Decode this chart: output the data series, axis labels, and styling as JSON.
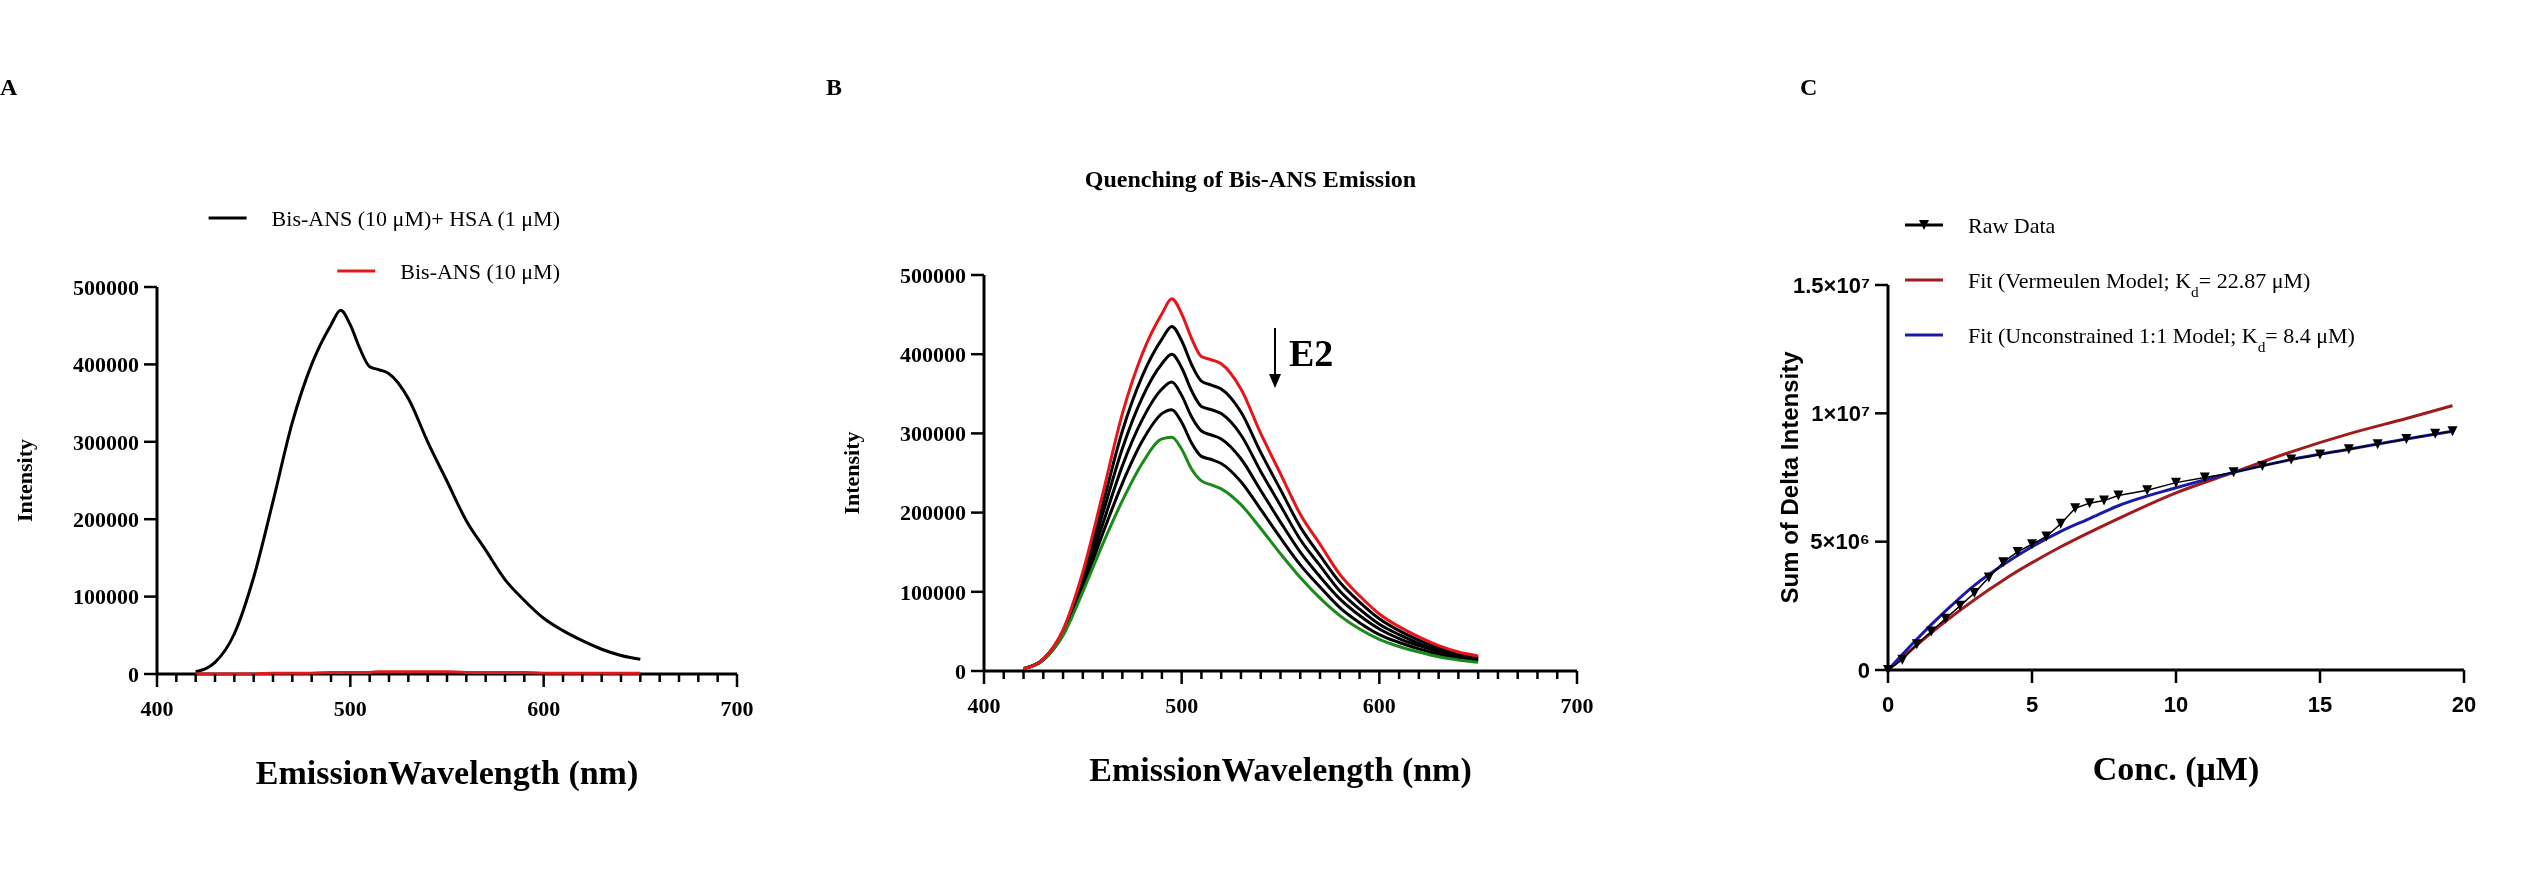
{
  "chart_data": [
    {
      "type": "line",
      "annotations": [
        "A"
      ],
      "xlabel": "EmissionWavelength (nm)",
      "ylabel": "Intensity",
      "legend": "top",
      "x": [
        420,
        430,
        440,
        450,
        460,
        470,
        480,
        490,
        495,
        500,
        505,
        510,
        515,
        520,
        530,
        540,
        550,
        560,
        570,
        580,
        590,
        600,
        610,
        620,
        630,
        640,
        650
      ],
      "series": [
        {
          "name": "Bis-ANS (10 μM)+ HSA (1 μM)",
          "color": "#000000",
          "values": [
            3000,
            15000,
            52000,
            125000,
            223000,
            325000,
            400000,
            451000,
            470000,
            451000,
            420000,
            397000,
            393000,
            388000,
            356000,
            300000,
            249000,
            198000,
            160000,
            122000,
            95000,
            72000,
            56000,
            43000,
            32000,
            24000,
            19000
          ]
        },
        {
          "name": "Bis-ANS (10 μM)",
          "color": "#e31a1c",
          "values": [
            0,
            0,
            0,
            0,
            1000,
            1000,
            1000,
            2000,
            2000,
            2000,
            2000,
            2000,
            3000,
            3000,
            3000,
            3000,
            3000,
            2000,
            2000,
            2000,
            2000,
            1000,
            1000,
            1000,
            1000,
            1000,
            1000
          ]
        }
      ],
      "xlim": [
        400,
        700
      ],
      "xticks": [
        400,
        {
          "value": 410,
          "label": null
        },
        {
          "value": 420,
          "label": null
        },
        {
          "value": 430,
          "label": null
        },
        {
          "value": 440,
          "label": null
        },
        {
          "value": 450,
          "label": null
        },
        {
          "value": 460,
          "label": null
        },
        {
          "value": 470,
          "label": null
        },
        {
          "value": 480,
          "label": null
        },
        {
          "value": 490,
          "label": null
        },
        500,
        {
          "value": 510,
          "label": null
        },
        {
          "value": 520,
          "label": null
        },
        {
          "value": 530,
          "label": null
        },
        {
          "value": 540,
          "label": null
        },
        {
          "value": 550,
          "label": null
        },
        {
          "value": 560,
          "label": null
        },
        {
          "value": 570,
          "label": null
        },
        {
          "value": 580,
          "label": null
        },
        {
          "value": 590,
          "label": null
        },
        600,
        {
          "value": 610,
          "label": null
        },
        {
          "value": 620,
          "label": null
        },
        {
          "value": 630,
          "label": null
        },
        {
          "value": 640,
          "label": null
        },
        {
          "value": 650,
          "label": null
        },
        {
          "value": 660,
          "label": null
        },
        {
          "value": 670,
          "label": null
        },
        {
          "value": 680,
          "label": null
        },
        {
          "value": 690,
          "label": null
        },
        700
      ],
      "ylim": [
        0,
        500000
      ],
      "yticks": [
        0,
        100000,
        200000,
        300000,
        400000,
        500000
      ],
      "grid": false
    },
    {
      "type": "line",
      "title": "Quenching of Bis-ANS Emission",
      "annotations": [
        "B",
        "E2"
      ],
      "xlabel": "EmissionWavelength (nm)",
      "ylabel": "Intensity",
      "x": [
        420,
        430,
        440,
        450,
        460,
        470,
        480,
        490,
        495,
        500,
        505,
        510,
        515,
        520,
        530,
        540,
        550,
        560,
        570,
        580,
        590,
        600,
        610,
        620,
        630,
        640,
        650
      ],
      "series": [
        {
          "color": "#000000",
          "values": [
            3000,
            15000,
            51000,
            120000,
            210000,
            303000,
            372000,
            419000,
            435000,
            417000,
            387000,
            366000,
            361000,
            356000,
            327000,
            276000,
            229000,
            182000,
            146000,
            112000,
            87000,
            66000,
            51000,
            39000,
            29000,
            22000,
            17000
          ]
        },
        {
          "color": "#000000",
          "values": [
            3000,
            15000,
            49000,
            115000,
            198000,
            281000,
            345000,
            388000,
            400000,
            383000,
            354000,
            334000,
            330000,
            325000,
            298000,
            252000,
            209000,
            166000,
            133000,
            101000,
            78000,
            59000,
            46000,
            35000,
            26000,
            20000,
            16000
          ]
        },
        {
          "color": "#000000",
          "values": [
            3000,
            14000,
            48000,
            110000,
            185000,
            259000,
            317000,
            356000,
            365000,
            348000,
            321000,
            303000,
            298000,
            293000,
            268000,
            228000,
            188000,
            150000,
            119000,
            91000,
            70000,
            53000,
            41000,
            32000,
            24000,
            18000,
            14000
          ]
        },
        {
          "color": "#000000",
          "values": [
            3000,
            14000,
            46000,
            105000,
            173000,
            237000,
            290000,
            325000,
            330000,
            314000,
            288000,
            271000,
            267000,
            262000,
            239000,
            204000,
            168000,
            134000,
            106000,
            80000,
            61000,
            46000,
            36000,
            28000,
            21000,
            16000,
            13000
          ]
        },
        {
          "color": "#1a8a1a",
          "values": [
            3000,
            14000,
            45000,
            100000,
            160000,
            215000,
            262000,
            293000,
            295000,
            280000,
            255000,
            240000,
            235000,
            230000,
            210000,
            180000,
            148000,
            118000,
            92000,
            70000,
            53000,
            40000,
            31000,
            24000,
            18000,
            14000,
            11000
          ]
        },
        {
          "color": "#e8141c",
          "values": [
            3000,
            15000,
            52000,
            125000,
            223000,
            325000,
            400000,
            451000,
            470000,
            451000,
            420000,
            397000,
            393000,
            388000,
            356000,
            300000,
            249000,
            198000,
            160000,
            122000,
            95000,
            72000,
            56000,
            43000,
            32000,
            24000,
            19000
          ]
        }
      ],
      "xlim": [
        400,
        700
      ],
      "xticks": [
        400,
        {
          "value": 410,
          "label": null
        },
        {
          "value": 420,
          "label": null
        },
        {
          "value": 430,
          "label": null
        },
        {
          "value": 440,
          "label": null
        },
        {
          "value": 450,
          "label": null
        },
        {
          "value": 460,
          "label": null
        },
        {
          "value": 470,
          "label": null
        },
        {
          "value": 480,
          "label": null
        },
        {
          "value": 490,
          "label": null
        },
        500,
        {
          "value": 510,
          "label": null
        },
        {
          "value": 520,
          "label": null
        },
        {
          "value": 530,
          "label": null
        },
        {
          "value": 540,
          "label": null
        },
        {
          "value": 550,
          "label": null
        },
        {
          "value": 560,
          "label": null
        },
        {
          "value": 570,
          "label": null
        },
        {
          "value": 580,
          "label": null
        },
        {
          "value": 590,
          "label": null
        },
        600,
        {
          "value": 610,
          "label": null
        },
        {
          "value": 620,
          "label": null
        },
        {
          "value": 630,
          "label": null
        },
        {
          "value": 640,
          "label": null
        },
        {
          "value": 650,
          "label": null
        },
        {
          "value": 660,
          "label": null
        },
        {
          "value": 670,
          "label": null
        },
        {
          "value": 680,
          "label": null
        },
        {
          "value": 690,
          "label": null
        },
        700
      ],
      "ylim": [
        0,
        500000
      ],
      "yticks": [
        0,
        100000,
        200000,
        300000,
        400000,
        500000
      ],
      "grid": false
    },
    {
      "type": "line",
      "annotations": [
        "C"
      ],
      "xlabel": "Conc. (μM)",
      "ylabel": "Sum of Delta Intensity",
      "legend": "top",
      "series": [
        {
          "name": "Raw Data",
          "color": "#000000",
          "marker": "triangle",
          "x": [
            0,
            0.5,
            1,
            1.5,
            2,
            2.5,
            3,
            3.5,
            4,
            4.5,
            5,
            5.5,
            6,
            6.5,
            7,
            7.5,
            8,
            9,
            10,
            11,
            12,
            13,
            14,
            15,
            16,
            17,
            18,
            19,
            19.6
          ],
          "values": [
            0,
            400000,
            1000000,
            1500000,
            2000000,
            2500000,
            3000000,
            3600000,
            4200000,
            4600000,
            4900000,
            5200000,
            5700000,
            6300000,
            6500000,
            6600000,
            6800000,
            7000000,
            7300000,
            7500000,
            7700000,
            7950000,
            8200000,
            8400000,
            8600000,
            8800000,
            9000000,
            9200000,
            9300000
          ]
        },
        {
          "name": "Fit (Vermeulen Model; K$_{d}$= 22.87 μM)",
          "color": "#a01c1c",
          "x": [
            0,
            2,
            4,
            6,
            8,
            10,
            12,
            14,
            16,
            18,
            19.6
          ],
          "values": [
            0,
            1900000,
            3500000,
            4800000,
            5900000,
            6900000,
            7700000,
            8500000,
            9200000,
            9800000,
            10300000
          ]
        },
        {
          "name": "Fit (Unconstrained 1:1 Model; K$_{d}$= 8.4 μM)",
          "color": "#1a1aa8",
          "x": [
            0,
            1,
            2,
            3,
            4,
            5,
            6,
            7,
            8,
            10,
            12,
            14,
            16,
            18,
            19.6
          ],
          "values": [
            0,
            1200000,
            2300000,
            3300000,
            4100000,
            4800000,
            5400000,
            5900000,
            6400000,
            7100000,
            7700000,
            8200000,
            8600000,
            9000000,
            9300000
          ]
        }
      ],
      "xlim": [
        0,
        20
      ],
      "xticks": [
        0,
        5,
        10,
        15,
        20
      ],
      "ylim": [
        0,
        15000000
      ],
      "yticks": [
        0,
        {
          "value": 5000000,
          "label": "5×10⁶"
        },
        {
          "value": 10000000,
          "label": "1×10⁷"
        },
        {
          "value": 15000000,
          "label": "1.5×10⁷"
        }
      ],
      "grid": false
    }
  ]
}
